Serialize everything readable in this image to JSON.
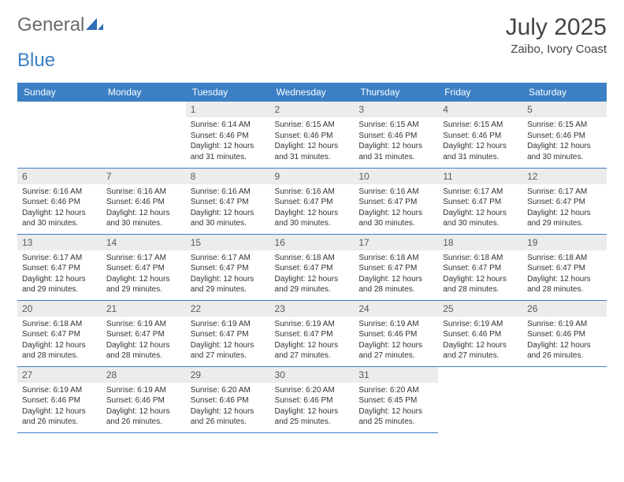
{
  "brand": {
    "part1": "General",
    "part2": "Blue"
  },
  "title": "July 2025",
  "location": "Zaibo, Ivory Coast",
  "colors": {
    "header_bg": "#3b7fc4",
    "header_text": "#ffffff",
    "daynum_bg": "#ececec",
    "daynum_text": "#5a5a5a",
    "body_text": "#333333",
    "rule": "#3b7fc4",
    "logo_gray": "#6b6b6b",
    "logo_blue": "#3b7fc4",
    "page_bg": "#ffffff"
  },
  "weekdays": [
    "Sunday",
    "Monday",
    "Tuesday",
    "Wednesday",
    "Thursday",
    "Friday",
    "Saturday"
  ],
  "weeks": [
    [
      null,
      null,
      {
        "n": "1",
        "sr": "Sunrise: 6:14 AM",
        "ss": "Sunset: 6:46 PM",
        "dl": "Daylight: 12 hours and 31 minutes."
      },
      {
        "n": "2",
        "sr": "Sunrise: 6:15 AM",
        "ss": "Sunset: 6:46 PM",
        "dl": "Daylight: 12 hours and 31 minutes."
      },
      {
        "n": "3",
        "sr": "Sunrise: 6:15 AM",
        "ss": "Sunset: 6:46 PM",
        "dl": "Daylight: 12 hours and 31 minutes."
      },
      {
        "n": "4",
        "sr": "Sunrise: 6:15 AM",
        "ss": "Sunset: 6:46 PM",
        "dl": "Daylight: 12 hours and 31 minutes."
      },
      {
        "n": "5",
        "sr": "Sunrise: 6:15 AM",
        "ss": "Sunset: 6:46 PM",
        "dl": "Daylight: 12 hours and 30 minutes."
      }
    ],
    [
      {
        "n": "6",
        "sr": "Sunrise: 6:16 AM",
        "ss": "Sunset: 6:46 PM",
        "dl": "Daylight: 12 hours and 30 minutes."
      },
      {
        "n": "7",
        "sr": "Sunrise: 6:16 AM",
        "ss": "Sunset: 6:46 PM",
        "dl": "Daylight: 12 hours and 30 minutes."
      },
      {
        "n": "8",
        "sr": "Sunrise: 6:16 AM",
        "ss": "Sunset: 6:47 PM",
        "dl": "Daylight: 12 hours and 30 minutes."
      },
      {
        "n": "9",
        "sr": "Sunrise: 6:16 AM",
        "ss": "Sunset: 6:47 PM",
        "dl": "Daylight: 12 hours and 30 minutes."
      },
      {
        "n": "10",
        "sr": "Sunrise: 6:16 AM",
        "ss": "Sunset: 6:47 PM",
        "dl": "Daylight: 12 hours and 30 minutes."
      },
      {
        "n": "11",
        "sr": "Sunrise: 6:17 AM",
        "ss": "Sunset: 6:47 PM",
        "dl": "Daylight: 12 hours and 30 minutes."
      },
      {
        "n": "12",
        "sr": "Sunrise: 6:17 AM",
        "ss": "Sunset: 6:47 PM",
        "dl": "Daylight: 12 hours and 29 minutes."
      }
    ],
    [
      {
        "n": "13",
        "sr": "Sunrise: 6:17 AM",
        "ss": "Sunset: 6:47 PM",
        "dl": "Daylight: 12 hours and 29 minutes."
      },
      {
        "n": "14",
        "sr": "Sunrise: 6:17 AM",
        "ss": "Sunset: 6:47 PM",
        "dl": "Daylight: 12 hours and 29 minutes."
      },
      {
        "n": "15",
        "sr": "Sunrise: 6:17 AM",
        "ss": "Sunset: 6:47 PM",
        "dl": "Daylight: 12 hours and 29 minutes."
      },
      {
        "n": "16",
        "sr": "Sunrise: 6:18 AM",
        "ss": "Sunset: 6:47 PM",
        "dl": "Daylight: 12 hours and 29 minutes."
      },
      {
        "n": "17",
        "sr": "Sunrise: 6:18 AM",
        "ss": "Sunset: 6:47 PM",
        "dl": "Daylight: 12 hours and 28 minutes."
      },
      {
        "n": "18",
        "sr": "Sunrise: 6:18 AM",
        "ss": "Sunset: 6:47 PM",
        "dl": "Daylight: 12 hours and 28 minutes."
      },
      {
        "n": "19",
        "sr": "Sunrise: 6:18 AM",
        "ss": "Sunset: 6:47 PM",
        "dl": "Daylight: 12 hours and 28 minutes."
      }
    ],
    [
      {
        "n": "20",
        "sr": "Sunrise: 6:18 AM",
        "ss": "Sunset: 6:47 PM",
        "dl": "Daylight: 12 hours and 28 minutes."
      },
      {
        "n": "21",
        "sr": "Sunrise: 6:19 AM",
        "ss": "Sunset: 6:47 PM",
        "dl": "Daylight: 12 hours and 28 minutes."
      },
      {
        "n": "22",
        "sr": "Sunrise: 6:19 AM",
        "ss": "Sunset: 6:47 PM",
        "dl": "Daylight: 12 hours and 27 minutes."
      },
      {
        "n": "23",
        "sr": "Sunrise: 6:19 AM",
        "ss": "Sunset: 6:47 PM",
        "dl": "Daylight: 12 hours and 27 minutes."
      },
      {
        "n": "24",
        "sr": "Sunrise: 6:19 AM",
        "ss": "Sunset: 6:46 PM",
        "dl": "Daylight: 12 hours and 27 minutes."
      },
      {
        "n": "25",
        "sr": "Sunrise: 6:19 AM",
        "ss": "Sunset: 6:46 PM",
        "dl": "Daylight: 12 hours and 27 minutes."
      },
      {
        "n": "26",
        "sr": "Sunrise: 6:19 AM",
        "ss": "Sunset: 6:46 PM",
        "dl": "Daylight: 12 hours and 26 minutes."
      }
    ],
    [
      {
        "n": "27",
        "sr": "Sunrise: 6:19 AM",
        "ss": "Sunset: 6:46 PM",
        "dl": "Daylight: 12 hours and 26 minutes."
      },
      {
        "n": "28",
        "sr": "Sunrise: 6:19 AM",
        "ss": "Sunset: 6:46 PM",
        "dl": "Daylight: 12 hours and 26 minutes."
      },
      {
        "n": "29",
        "sr": "Sunrise: 6:20 AM",
        "ss": "Sunset: 6:46 PM",
        "dl": "Daylight: 12 hours and 26 minutes."
      },
      {
        "n": "30",
        "sr": "Sunrise: 6:20 AM",
        "ss": "Sunset: 6:46 PM",
        "dl": "Daylight: 12 hours and 25 minutes."
      },
      {
        "n": "31",
        "sr": "Sunrise: 6:20 AM",
        "ss": "Sunset: 6:45 PM",
        "dl": "Daylight: 12 hours and 25 minutes."
      },
      null,
      null
    ]
  ]
}
